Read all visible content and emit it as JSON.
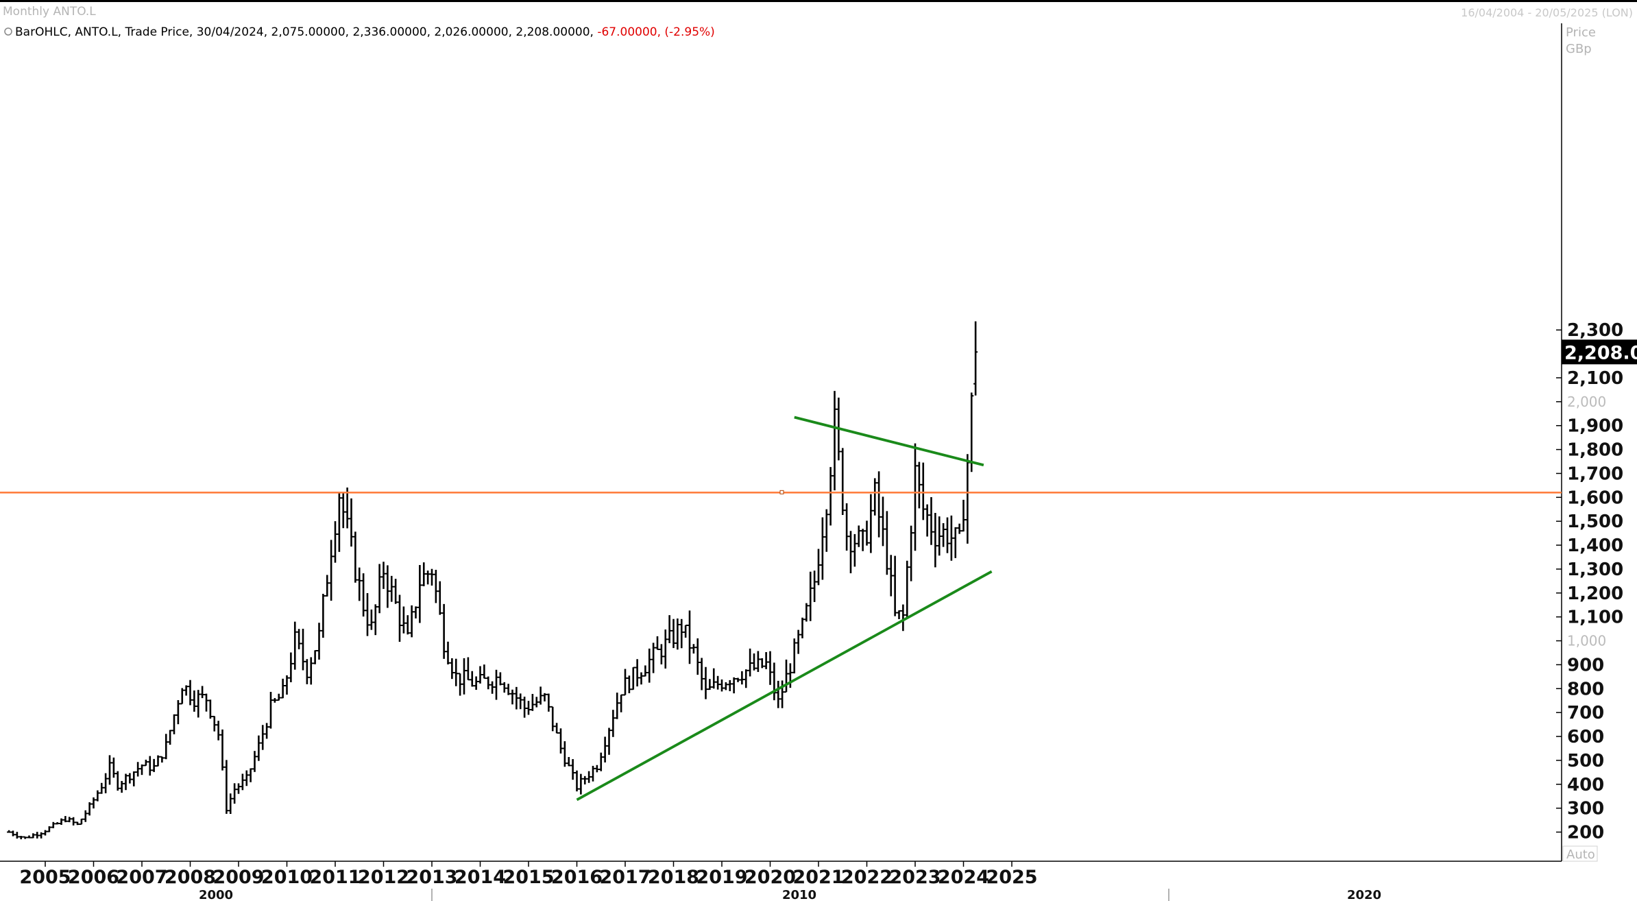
{
  "window": {
    "title": "Monthly ANTO.L",
    "date_range": "16/04/2004 - 20/05/2025 (LON)"
  },
  "legend": {
    "series": "BarOHLC, ANTO.L, Trade Price, 30/04/2024, 2,075.00000, 2,336.00000, 2,026.00000, 2,208.00000, ",
    "change": "-67.00000, (-2.95%)"
  },
  "colors": {
    "bars": "#000000",
    "horizontal_line": "#ff7f3f",
    "trendlines": "#1a8a1a",
    "change_negative": "#e00000",
    "last_price_bg": "#000000",
    "last_price_fg": "#ffffff"
  },
  "axis": {
    "price_label": "Price",
    "unit_label": "GBp",
    "auto_label": "Auto",
    "last_price_label": "2,208.0"
  },
  "chart_data": {
    "type": "bar",
    "subtype": "OHLC",
    "frequency": "monthly",
    "ticker": "ANTO.L",
    "yticks": [
      "200",
      "300",
      "400",
      "500",
      "600",
      "700",
      "800",
      "900",
      "1,000",
      "1,100",
      "1,200",
      "1,300",
      "1,400",
      "1,500",
      "1,600",
      "1,700",
      "1,800",
      "1,900",
      "2,000",
      "2,100",
      "2,300"
    ],
    "ylim": [
      150,
      2420
    ],
    "xticks": [
      "2005",
      "2006",
      "2007",
      "2008",
      "2009",
      "2010",
      "2011",
      "2012",
      "2013",
      "2014",
      "2015",
      "2016",
      "2017",
      "2018",
      "2019",
      "2020",
      "2021",
      "2022",
      "2023",
      "2024",
      "2025"
    ],
    "decade_labels": [
      "2000",
      "2010",
      "2020"
    ],
    "xlim": [
      "2004-04",
      "2025-06"
    ],
    "last_price": 2208,
    "horizontal_line": {
      "y": 1620
    },
    "trendlines": [
      {
        "x1": "2016-01",
        "y1": 335,
        "x2": "2024-08",
        "y2": 1290
      },
      {
        "x1": "2020-07",
        "y1": 1935,
        "x2": "2024-06",
        "y2": 1735
      }
    ],
    "anchors": [
      {
        "date": "2004-04",
        "close": 200
      },
      {
        "date": "2004-08",
        "close": 175
      },
      {
        "date": "2004-12",
        "close": 200
      },
      {
        "date": "2005-03",
        "close": 225
      },
      {
        "date": "2005-06",
        "close": 255
      },
      {
        "date": "2005-09",
        "close": 230
      },
      {
        "date": "2005-12",
        "close": 305
      },
      {
        "date": "2006-03",
        "close": 395
      },
      {
        "date": "2006-05",
        "close": 470
      },
      {
        "date": "2006-07",
        "close": 400
      },
      {
        "date": "2006-10",
        "close": 440
      },
      {
        "date": "2007-01",
        "close": 480
      },
      {
        "date": "2007-04",
        "close": 470
      },
      {
        "date": "2007-07",
        "close": 560
      },
      {
        "date": "2007-11",
        "close": 820
      },
      {
        "date": "2008-02",
        "close": 760
      },
      {
        "date": "2008-05",
        "close": 760
      },
      {
        "date": "2008-08",
        "close": 610
      },
      {
        "date": "2008-10",
        "close": 300
      },
      {
        "date": "2008-12",
        "close": 380
      },
      {
        "date": "2009-03",
        "close": 420
      },
      {
        "date": "2009-06",
        "close": 560
      },
      {
        "date": "2009-09",
        "close": 720
      },
      {
        "date": "2009-12",
        "close": 780
      },
      {
        "date": "2010-03",
        "close": 1000
      },
      {
        "date": "2010-06",
        "close": 880
      },
      {
        "date": "2010-09",
        "close": 1020
      },
      {
        "date": "2010-12",
        "close": 1400
      },
      {
        "date": "2011-02",
        "close": 1620
      },
      {
        "date": "2011-05",
        "close": 1380
      },
      {
        "date": "2011-08",
        "close": 1150
      },
      {
        "date": "2011-10",
        "close": 1050
      },
      {
        "date": "2012-01",
        "close": 1300
      },
      {
        "date": "2012-04",
        "close": 1150
      },
      {
        "date": "2012-07",
        "close": 1000
      },
      {
        "date": "2012-10",
        "close": 1250
      },
      {
        "date": "2013-01",
        "close": 1300
      },
      {
        "date": "2013-04",
        "close": 1000
      },
      {
        "date": "2013-07",
        "close": 850
      },
      {
        "date": "2013-12",
        "close": 820
      },
      {
        "date": "2014-06",
        "close": 850
      },
      {
        "date": "2014-12",
        "close": 720
      },
      {
        "date": "2015-05",
        "close": 760
      },
      {
        "date": "2015-09",
        "close": 550
      },
      {
        "date": "2016-01",
        "close": 390
      },
      {
        "date": "2016-06",
        "close": 480
      },
      {
        "date": "2016-12",
        "close": 800
      },
      {
        "date": "2017-06",
        "close": 900
      },
      {
        "date": "2017-12",
        "close": 1000
      },
      {
        "date": "2018-03",
        "close": 1060
      },
      {
        "date": "2018-06",
        "close": 950
      },
      {
        "date": "2018-09",
        "close": 780
      },
      {
        "date": "2018-12",
        "close": 820
      },
      {
        "date": "2019-06",
        "close": 870
      },
      {
        "date": "2019-12",
        "close": 900
      },
      {
        "date": "2020-03",
        "close": 740
      },
      {
        "date": "2020-06",
        "close": 900
      },
      {
        "date": "2020-09",
        "close": 1050
      },
      {
        "date": "2020-12",
        "close": 1250
      },
      {
        "date": "2021-03",
        "close": 1600
      },
      {
        "date": "2021-05",
        "close": 1900
      },
      {
        "date": "2021-08",
        "close": 1450
      },
      {
        "date": "2021-12",
        "close": 1400
      },
      {
        "date": "2022-03",
        "close": 1600
      },
      {
        "date": "2022-06",
        "close": 1350
      },
      {
        "date": "2022-08",
        "close": 1100
      },
      {
        "date": "2022-10",
        "close": 1100
      },
      {
        "date": "2023-01",
        "close": 1700
      },
      {
        "date": "2023-03",
        "close": 1550
      },
      {
        "date": "2023-06",
        "close": 1450
      },
      {
        "date": "2023-09",
        "close": 1450
      },
      {
        "date": "2023-12",
        "close": 1400
      },
      {
        "date": "2024-02",
        "close": 1750
      },
      {
        "date": "2024-04",
        "close": 2208
      }
    ]
  }
}
